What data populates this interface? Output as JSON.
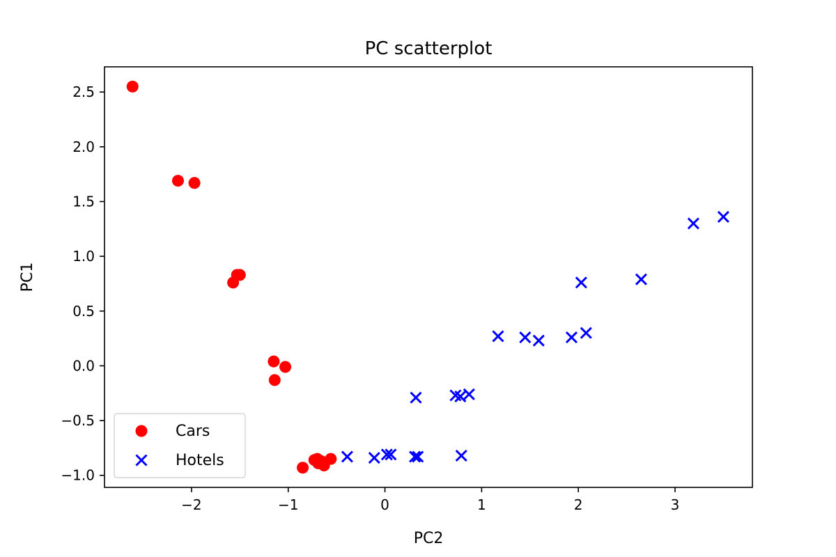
{
  "chart_data": {
    "type": "scatter",
    "title": "PC scatterplot",
    "xlabel": "PC2",
    "ylabel": "PC1",
    "xlim": [
      -2.9,
      3.8
    ],
    "ylim": [
      -1.11,
      2.73
    ],
    "xticks": [
      -2,
      -1,
      0,
      1,
      2,
      3
    ],
    "xtick_labels": [
      "−2",
      "−1",
      "0",
      "1",
      "2",
      "3"
    ],
    "yticks": [
      -1.0,
      -0.5,
      0.0,
      0.5,
      1.0,
      1.5,
      2.0,
      2.5
    ],
    "ytick_labels": [
      "−1.0",
      "−0.5",
      "0.0",
      "0.5",
      "1.0",
      "1.5",
      "2.0",
      "2.5"
    ],
    "grid": false,
    "legend_position": "lower-left",
    "series": [
      {
        "name": "Cars",
        "marker": "circle",
        "color": "#ff0000",
        "points": [
          [
            -2.61,
            2.55
          ],
          [
            -2.14,
            1.69
          ],
          [
            -1.97,
            1.67
          ],
          [
            -1.57,
            0.76
          ],
          [
            -1.53,
            0.83
          ],
          [
            -1.5,
            0.83
          ],
          [
            -1.15,
            0.04
          ],
          [
            -1.14,
            -0.13
          ],
          [
            -1.03,
            -0.01
          ],
          [
            -0.85,
            -0.93
          ],
          [
            -0.73,
            -0.86
          ],
          [
            -0.7,
            -0.85
          ],
          [
            -0.69,
            -0.89
          ],
          [
            -0.66,
            -0.87
          ],
          [
            -0.63,
            -0.91
          ],
          [
            -0.56,
            -0.85
          ]
        ]
      },
      {
        "name": "Hotels",
        "marker": "x",
        "color": "#0000ff",
        "points": [
          [
            -0.39,
            -0.83
          ],
          [
            -0.11,
            -0.84
          ],
          [
            0.02,
            -0.81
          ],
          [
            0.06,
            -0.81
          ],
          [
            0.31,
            -0.83
          ],
          [
            0.34,
            -0.83
          ],
          [
            0.32,
            -0.29
          ],
          [
            0.73,
            -0.27
          ],
          [
            0.78,
            -0.28
          ],
          [
            0.87,
            -0.26
          ],
          [
            0.79,
            -0.82
          ],
          [
            1.17,
            0.27
          ],
          [
            1.45,
            0.26
          ],
          [
            1.59,
            0.23
          ],
          [
            1.93,
            0.26
          ],
          [
            2.08,
            0.3
          ],
          [
            2.03,
            0.76
          ],
          [
            2.65,
            0.79
          ],
          [
            3.19,
            1.3
          ],
          [
            3.5,
            1.36
          ]
        ]
      }
    ]
  }
}
